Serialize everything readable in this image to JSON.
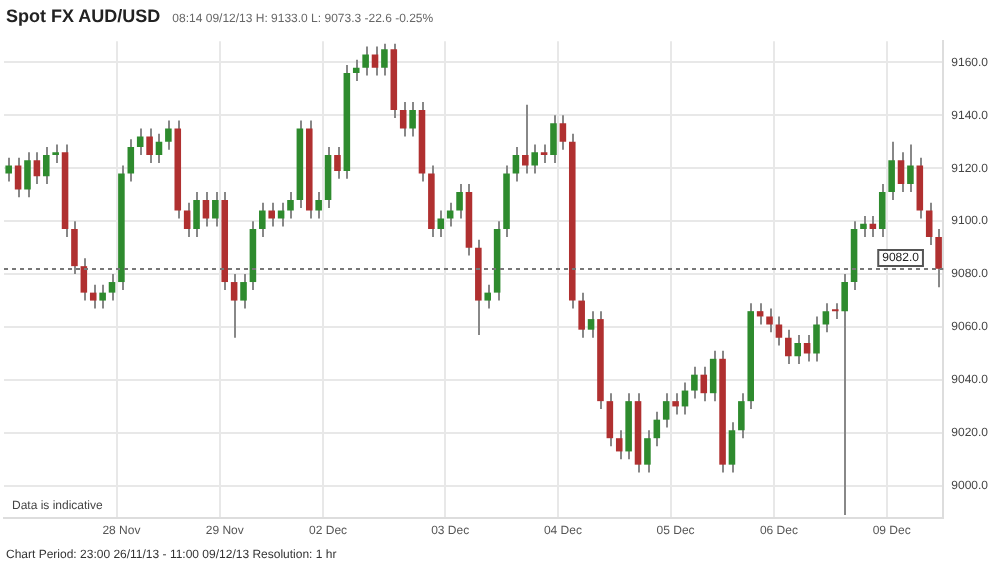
{
  "chart_data": {
    "type": "candlestick",
    "title": "Spot FX AUD/USD",
    "subtitle": "08:14 09/12/13  H: 9133.0  L: 9073.3  -22.6  -0.25%",
    "annotations": [
      "Data is indicative",
      "Chart Period: 23:00 26/11/13 - 11:00 09/12/13    Resolution: 1 hr"
    ],
    "categories": [
      null,
      null,
      null,
      null,
      null,
      null,
      null,
      null,
      null,
      null,
      null,
      null,
      "28 Nov",
      null,
      null,
      null,
      null,
      null,
      null,
      null,
      null,
      null,
      null,
      "29 Nov",
      null,
      null,
      null,
      null,
      null,
      null,
      null,
      null,
      null,
      null,
      "02 Dec",
      null,
      null,
      null,
      null,
      null,
      null,
      null,
      null,
      null,
      null,
      null,
      null,
      "03 Dec",
      null,
      null,
      null,
      null,
      null,
      null,
      null,
      null,
      null,
      null,
      null,
      "04 Dec",
      null,
      null,
      null,
      null,
      null,
      null,
      null,
      null,
      null,
      null,
      null,
      "05 Dec",
      null,
      null,
      null,
      null,
      null,
      null,
      null,
      null,
      null,
      null,
      "06 Dec",
      null,
      null,
      null,
      null,
      null,
      null,
      null,
      null,
      null,
      null,
      null,
      "09 Dec",
      null,
      null,
      null,
      null,
      null
    ],
    "ohlc": [
      [
        9118,
        9124,
        9115,
        9121
      ],
      [
        9121,
        9124,
        9109,
        9112
      ],
      [
        9112,
        9126,
        9109,
        9123
      ],
      [
        9123,
        9126,
        9114,
        9117
      ],
      [
        9117,
        9128,
        9114,
        9125
      ],
      [
        9125,
        9129,
        9122,
        9126
      ],
      [
        9126,
        9129,
        9094,
        9097
      ],
      [
        9097,
        9100,
        9080,
        9083
      ],
      [
        9083,
        9086,
        9070,
        9073
      ],
      [
        9073,
        9076,
        9067,
        9070
      ],
      [
        9070,
        9076,
        9067,
        9073
      ],
      [
        9073,
        9080,
        9070,
        9077
      ],
      [
        9077,
        9121,
        9074,
        9118
      ],
      [
        9118,
        9131,
        9115,
        9128
      ],
      [
        9128,
        9135,
        9125,
        9132
      ],
      [
        9132,
        9135,
        9122,
        9125
      ],
      [
        9125,
        9133,
        9122,
        9130
      ],
      [
        9130,
        9138,
        9127,
        9135
      ],
      [
        9135,
        9138,
        9101,
        9104
      ],
      [
        9104,
        9107,
        9094,
        9097
      ],
      [
        9097,
        9111,
        9094,
        9108
      ],
      [
        9108,
        9111,
        9098,
        9101
      ],
      [
        9101,
        9111,
        9098,
        9108
      ],
      [
        9108,
        9111,
        9074,
        9077
      ],
      [
        9077,
        9080,
        9056,
        9070
      ],
      [
        9070,
        9080,
        9067,
        9077
      ],
      [
        9077,
        9100,
        9074,
        9097
      ],
      [
        9097,
        9107,
        9094,
        9104
      ],
      [
        9104,
        9107,
        9098,
        9101
      ],
      [
        9101,
        9107,
        9098,
        9104
      ],
      [
        9104,
        9111,
        9101,
        9108
      ],
      [
        9108,
        9138,
        9105,
        9135
      ],
      [
        9135,
        9138,
        9101,
        9104
      ],
      [
        9104,
        9111,
        9101,
        9108
      ],
      [
        9108,
        9128,
        9105,
        9125
      ],
      [
        9125,
        9128,
        9116,
        9119
      ],
      [
        9119,
        9159,
        9116,
        9156
      ],
      [
        9156,
        9161,
        9153,
        9158
      ],
      [
        9158,
        9166,
        9155,
        9163
      ],
      [
        9163,
        9166,
        9155,
        9158
      ],
      [
        9158,
        9167,
        9155,
        9165
      ],
      [
        9165,
        9167,
        9139,
        9142
      ],
      [
        9142,
        9145,
        9132,
        9135
      ],
      [
        9135,
        9145,
        9132,
        9142
      ],
      [
        9142,
        9145,
        9115,
        9118
      ],
      [
        9118,
        9121,
        9094,
        9097
      ],
      [
        9097,
        9104,
        9094,
        9101
      ],
      [
        9101,
        9107,
        9098,
        9104
      ],
      [
        9104,
        9114,
        9101,
        9111
      ],
      [
        9111,
        9114,
        9087,
        9090
      ],
      [
        9090,
        9093,
        9057,
        9070
      ],
      [
        9070,
        9076,
        9067,
        9073
      ],
      [
        9073,
        9100,
        9070,
        9097
      ],
      [
        9097,
        9121,
        9094,
        9118
      ],
      [
        9118,
        9128,
        9115,
        9125
      ],
      [
        9125,
        9144,
        9118,
        9121
      ],
      [
        9121,
        9129,
        9118,
        9126
      ],
      [
        9126,
        9129,
        9122,
        9125
      ],
      [
        9125,
        9140,
        9122,
        9137
      ],
      [
        9137,
        9140,
        9127,
        9130
      ],
      [
        9130,
        9133,
        9067,
        9070
      ],
      [
        9070,
        9073,
        9056,
        9059
      ],
      [
        9059,
        9066,
        9056,
        9063
      ],
      [
        9063,
        9066,
        9029,
        9032
      ],
      [
        9032,
        9035,
        9015,
        9018
      ],
      [
        9018,
        9021,
        9010,
        9013
      ],
      [
        9013,
        9035,
        9010,
        9032
      ],
      [
        9032,
        9035,
        9005,
        9008
      ],
      [
        9008,
        9021,
        9005,
        9018
      ],
      [
        9018,
        9028,
        9015,
        9025
      ],
      [
        9025,
        9035,
        9022,
        9032
      ],
      [
        9032,
        9035,
        9027,
        9030
      ],
      [
        9030,
        9039,
        9027,
        9036
      ],
      [
        9036,
        9045,
        9033,
        9042
      ],
      [
        9042,
        9045,
        9032,
        9035
      ],
      [
        9035,
        9051,
        9032,
        9048
      ],
      [
        9048,
        9051,
        9005,
        9008
      ],
      [
        9008,
        9024,
        9005,
        9021
      ],
      [
        9021,
        9035,
        9018,
        9032
      ],
      [
        9032,
        9069,
        9029,
        9066
      ],
      [
        9066,
        9069,
        9061,
        9064
      ],
      [
        9064,
        9067,
        9058,
        9061
      ],
      [
        9061,
        9064,
        9053,
        9056
      ],
      [
        9056,
        9059,
        9046,
        9049
      ],
      [
        9049,
        9057,
        9046,
        9054
      ],
      [
        9054,
        9057,
        9047,
        9050
      ],
      [
        9050,
        9064,
        9047,
        9061
      ],
      [
        9061,
        9069,
        9058,
        9066
      ],
      [
        9066,
        9069,
        9063,
        9066
      ],
      [
        9066,
        9080,
        8989,
        9077
      ],
      [
        9077,
        9100,
        9074,
        9097
      ],
      [
        9097,
        9102,
        9094,
        9099
      ],
      [
        9099,
        9102,
        9094,
        9097
      ],
      [
        9097,
        9114,
        9094,
        9111
      ],
      [
        9111,
        9130,
        9108,
        9123
      ],
      [
        9123,
        9126,
        9111,
        9114
      ],
      [
        9114,
        9129,
        9111,
        9121
      ],
      [
        9121,
        9124,
        9101,
        9104
      ],
      [
        9104,
        9107,
        9091,
        9094
      ],
      [
        9094,
        9097,
        9075,
        9082
      ]
    ],
    "colors": [
      "#2e8b2e",
      "#b03030",
      "#2e8b2e",
      "#b03030",
      "#2e8b2e",
      "#2e8b2e",
      "#b03030",
      "#b03030",
      "#b03030",
      "#b03030",
      "#2e8b2e",
      "#2e8b2e",
      "#2e8b2e",
      "#2e8b2e",
      "#2e8b2e",
      "#b03030",
      "#2e8b2e",
      "#2e8b2e",
      "#b03030",
      "#b03030",
      "#2e8b2e",
      "#b03030",
      "#2e8b2e",
      "#b03030",
      "#b03030",
      "#2e8b2e",
      "#2e8b2e",
      "#2e8b2e",
      "#b03030",
      "#2e8b2e",
      "#2e8b2e",
      "#2e8b2e",
      "#b03030",
      "#2e8b2e",
      "#2e8b2e",
      "#b03030",
      "#2e8b2e",
      "#2e8b2e",
      "#2e8b2e",
      "#b03030",
      "#2e8b2e",
      "#b03030",
      "#b03030",
      "#2e8b2e",
      "#b03030",
      "#b03030",
      "#2e8b2e",
      "#2e8b2e",
      "#2e8b2e",
      "#b03030",
      "#b03030",
      "#2e8b2e",
      "#2e8b2e",
      "#2e8b2e",
      "#2e8b2e",
      "#b03030",
      "#2e8b2e",
      "#b03030",
      "#2e8b2e",
      "#b03030",
      "#b03030",
      "#b03030",
      "#2e8b2e",
      "#b03030",
      "#b03030",
      "#b03030",
      "#2e8b2e",
      "#b03030",
      "#2e8b2e",
      "#2e8b2e",
      "#2e8b2e",
      "#b03030",
      "#2e8b2e",
      "#2e8b2e",
      "#b03030",
      "#2e8b2e",
      "#b03030",
      "#2e8b2e",
      "#2e8b2e",
      "#2e8b2e",
      "#b03030",
      "#b03030",
      "#b03030",
      "#b03030",
      "#2e8b2e",
      "#b03030",
      "#2e8b2e",
      "#2e8b2e",
      "#b03030",
      "#2e8b2e",
      "#2e8b2e",
      "#2e8b2e",
      "#b03030",
      "#2e8b2e",
      "#2e8b2e",
      "#b03030",
      "#2e8b2e",
      "#b03030",
      "#b03030",
      "#b03030"
    ],
    "ylim": [
      8988,
      9168
    ],
    "yticks": [
      {
        "value": 9000,
        "label": "9000.0"
      },
      {
        "value": 9020,
        "label": "9020.0"
      },
      {
        "value": 9040,
        "label": "9040.0"
      },
      {
        "value": 9060,
        "label": "9060.0"
      },
      {
        "value": 9080,
        "label": "9080.0"
      },
      {
        "value": 9100,
        "label": "9100.0"
      },
      {
        "value": 9120,
        "label": "9120.0"
      },
      {
        "value": 9140,
        "label": "9140.0"
      },
      {
        "value": 9160,
        "label": "9160.0"
      }
    ],
    "ref_lines": [
      {
        "axis": "y",
        "value": 9082,
        "label": "9082.0"
      }
    ],
    "grid": true,
    "legend": false
  }
}
